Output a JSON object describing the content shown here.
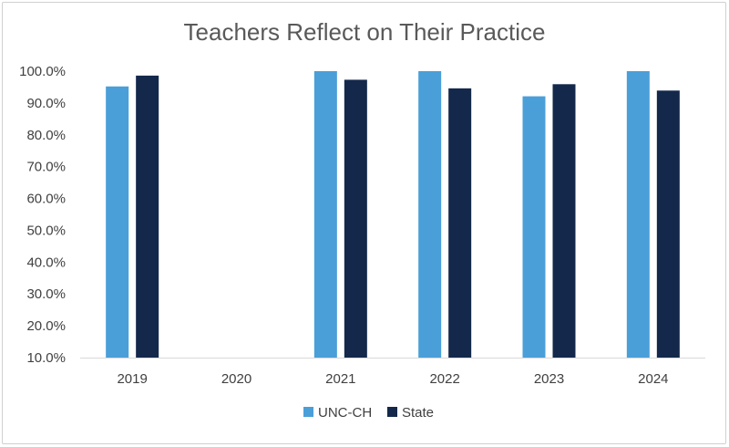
{
  "chart_data": {
    "type": "bar",
    "title": "Teachers Reflect on Their Practice",
    "xlabel": "",
    "ylabel": "",
    "categories": [
      "2019",
      "2020",
      "2021",
      "2022",
      "2023",
      "2024"
    ],
    "series": [
      {
        "name": "UNC-CH",
        "color": "#4a9fd8",
        "values": [
          95.2,
          null,
          100.0,
          100.0,
          92.1,
          100.0
        ]
      },
      {
        "name": "State",
        "color": "#13284b",
        "values": [
          98.6,
          null,
          97.3,
          94.6,
          95.9,
          93.9
        ]
      }
    ],
    "ylim": [
      10,
      100
    ],
    "yticks": [
      "10.0%",
      "20.0%",
      "30.0%",
      "40.0%",
      "50.0%",
      "60.0%",
      "70.0%",
      "80.0%",
      "90.0%",
      "100.0%"
    ],
    "grid": false,
    "legend_position": "bottom"
  }
}
